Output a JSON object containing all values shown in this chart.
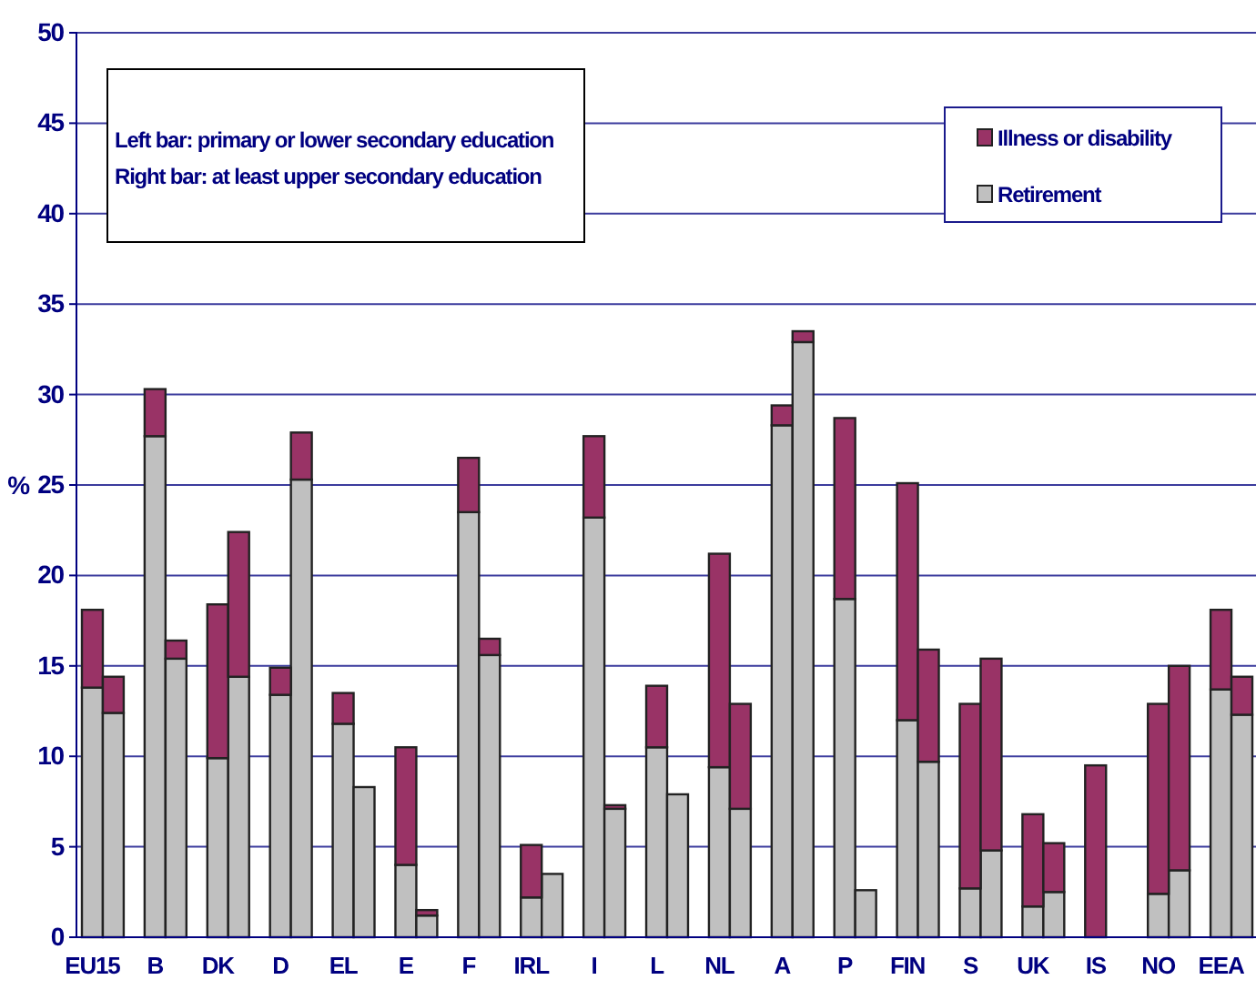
{
  "chart_data": {
    "type": "bar",
    "stacked": true,
    "ylabel": "%",
    "ylim": [
      0,
      50
    ],
    "yticks": [
      0,
      5,
      10,
      15,
      20,
      25,
      30,
      35,
      40,
      45,
      50
    ],
    "grid": "y",
    "legend": "top right",
    "categories": [
      "EU15",
      null,
      null,
      "B",
      null,
      null,
      "DK",
      null,
      null,
      "D",
      null,
      null,
      "EL",
      null,
      null,
      "E",
      null,
      null,
      "F",
      null,
      null,
      "IRL",
      null,
      null,
      "I",
      null,
      null,
      "L",
      null,
      null,
      "NL",
      null,
      null,
      "A",
      null,
      null,
      "P",
      null,
      null,
      "FIN",
      null,
      null,
      "S",
      null,
      null,
      "UK",
      null,
      null,
      "IS",
      null,
      null,
      "NO",
      null,
      null,
      "EEA",
      null
    ],
    "series": [
      {
        "name": "Retirement",
        "color": "#c0c0c0",
        "values": [
          13.8,
          12.4,
          null,
          27.7,
          15.4,
          null,
          9.9,
          14.4,
          null,
          13.4,
          25.3,
          null,
          11.8,
          8.3,
          null,
          4.0,
          1.2,
          null,
          23.5,
          15.6,
          null,
          2.2,
          3.5,
          null,
          23.2,
          7.1,
          null,
          10.5,
          7.9,
          null,
          9.4,
          7.1,
          null,
          28.3,
          32.9,
          null,
          18.7,
          2.6,
          null,
          12.0,
          9.7,
          null,
          2.7,
          4.8,
          null,
          1.7,
          2.5,
          null,
          null,
          null,
          null,
          2.4,
          3.7,
          null,
          13.7,
          12.3
        ]
      },
      {
        "name": "Illness or disability",
        "color": "#993366",
        "values": [
          4.3,
          2.0,
          null,
          2.6,
          1.0,
          null,
          8.5,
          8.0,
          null,
          1.5,
          2.6,
          null,
          1.7,
          null,
          null,
          6.5,
          0.3,
          null,
          3.0,
          0.9,
          null,
          2.9,
          null,
          null,
          4.5,
          0.2,
          null,
          3.4,
          null,
          null,
          11.8,
          5.8,
          null,
          1.1,
          0.6,
          null,
          10.0,
          null,
          null,
          13.1,
          6.2,
          null,
          10.2,
          10.6,
          null,
          5.1,
          2.7,
          null,
          9.5,
          null,
          null,
          10.5,
          11.3,
          null,
          4.4,
          2.1
        ]
      }
    ],
    "annotations": [
      "Left bar: primary or lower secondary education",
      "Right bar: at least upper secondary education"
    ]
  }
}
